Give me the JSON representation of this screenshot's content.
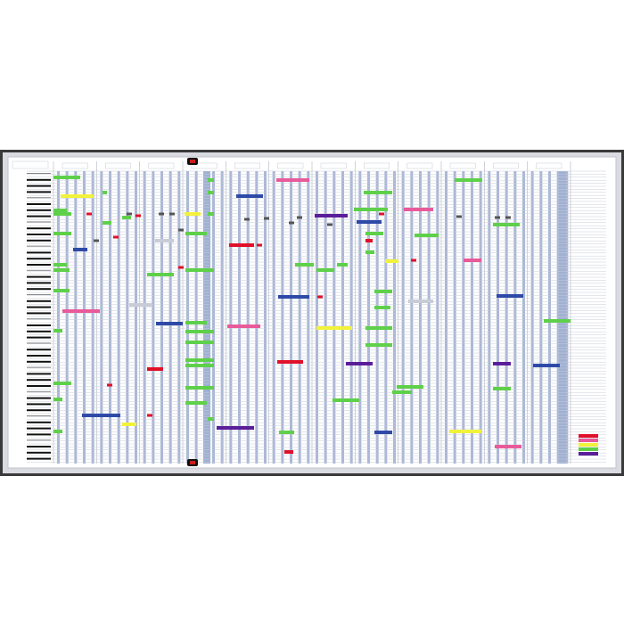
{
  "board": {
    "frame_color": "#3a3a3a",
    "frame_light": "#d9dbe0",
    "surface_color": "#ffffff",
    "stripe_color": "#a9b6d6",
    "grid_line_color": "#c9ced8",
    "month_count": 12,
    "magnet_color": "#cc1a1a"
  },
  "colors": {
    "green": "#5fd04a",
    "blue": "#2e4aa8",
    "red": "#e0102a",
    "pink": "#e85a9a",
    "yellow": "#f2f23a",
    "purple": "#5a1e9a",
    "grey": "#c8ccd6"
  },
  "legend": {
    "swatches": [
      "red",
      "pink",
      "yellow",
      "green",
      "purple"
    ]
  }
}
